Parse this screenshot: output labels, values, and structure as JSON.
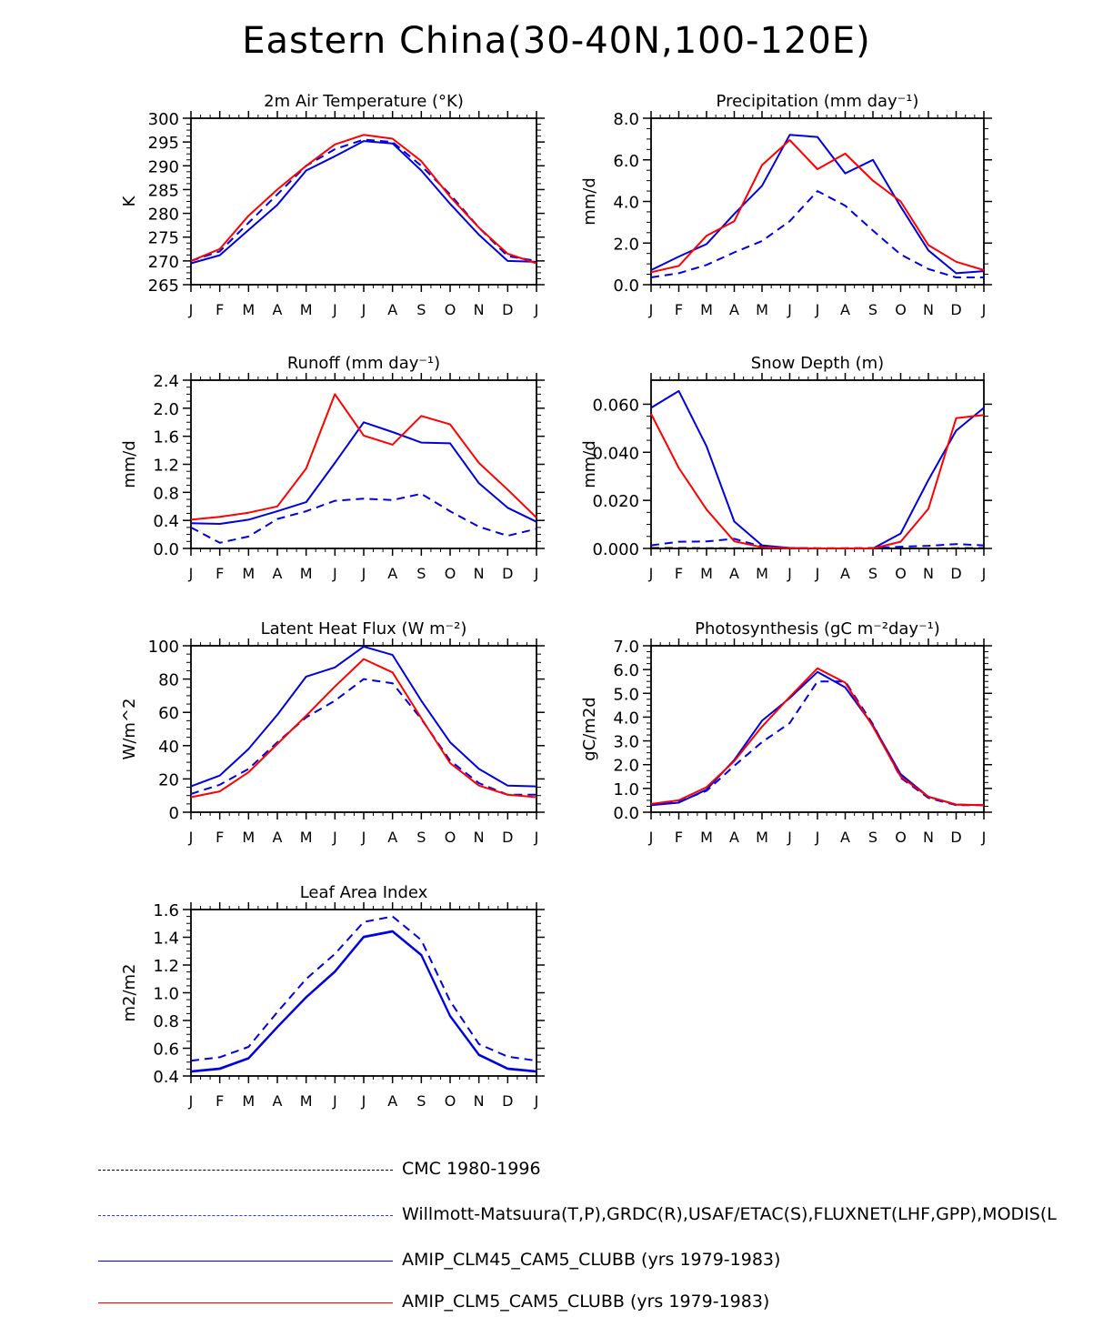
{
  "title": "Eastern China(30-40N,100-120E)",
  "colors": {
    "obs": "#000000",
    "obs2": "#1a1aff",
    "clm45": "#0000e0",
    "clm5": "#ff0000",
    "axis": "#000000"
  },
  "legend": [
    {
      "label": "CMC 1980-1996",
      "color": "#000000",
      "dash": true
    },
    {
      "label": "Willmott-Matsuura(T,P),GRDC(R),USAF/ETAC(S),FLUXNET(LHF,GPP),MODIS(L",
      "color": "#3333ff",
      "dash": true
    },
    {
      "label": "AMIP_CLM45_CAM5_CLUBB (yrs 1979-1983)",
      "color": "#0000e0",
      "dash": false
    },
    {
      "label": "AMIP_CLM5_CAM5_CLUBB (yrs 1979-1983)",
      "color": "#ff0000",
      "dash": false
    }
  ],
  "chart_data": [
    {
      "type": "line",
      "title": "2m Air Temperature (°K)",
      "ylabel": "K",
      "categories": [
        "J",
        "F",
        "M",
        "A",
        "M",
        "J",
        "J",
        "A",
        "S",
        "O",
        "N",
        "D",
        "J"
      ],
      "ylim": [
        265,
        300
      ],
      "yticks": [
        265,
        270,
        275,
        280,
        285,
        290,
        295,
        300
      ],
      "ytick_labels": [
        "265",
        "270",
        "275",
        "280",
        "285",
        "290",
        "295",
        "300"
      ],
      "series": [
        {
          "name": "Willmott-Matsuura",
          "style": "dash",
          "color": "#0000e0",
          "values": [
            270,
            272,
            278,
            284,
            290,
            293.5,
            295.5,
            295,
            290,
            284,
            277,
            271,
            270
          ]
        },
        {
          "name": "AMIP_CLM45_CAM5_CLUBB",
          "style": "solid",
          "color": "#0000e0",
          "values": [
            269.5,
            271.2,
            276.5,
            281.8,
            289,
            292,
            295.2,
            294.7,
            289,
            282,
            275.5,
            270,
            269.8
          ]
        },
        {
          "name": "AMIP_CLM5_CAM5_CLUBB",
          "style": "solid",
          "color": "#ff0000",
          "values": [
            270,
            272.5,
            279.5,
            285,
            290,
            294.5,
            296.5,
            295.7,
            291,
            283.5,
            277,
            271.5,
            269.5
          ]
        }
      ]
    },
    {
      "type": "line",
      "title": "Precipitation (mm day⁻¹)",
      "ylabel": "mm/d",
      "categories": [
        "J",
        "F",
        "M",
        "A",
        "M",
        "J",
        "J",
        "A",
        "S",
        "O",
        "N",
        "D",
        "J"
      ],
      "ylim": [
        0,
        8
      ],
      "yticks": [
        0,
        2,
        4,
        6,
        8
      ],
      "ytick_labels": [
        "0.0",
        "2.0",
        "4.0",
        "6.0",
        "8.0"
      ],
      "series": [
        {
          "name": "Willmott-Matsuura",
          "style": "dash",
          "color": "#0000e0",
          "values": [
            0.35,
            0.55,
            0.95,
            1.55,
            2.1,
            3.05,
            4.5,
            3.8,
            2.6,
            1.45,
            0.75,
            0.35,
            0.35
          ]
        },
        {
          "name": "AMIP_CLM45_CAM5_CLUBB",
          "style": "solid",
          "color": "#0000e0",
          "values": [
            0.7,
            1.35,
            1.95,
            3.4,
            4.75,
            7.2,
            7.1,
            5.35,
            6.0,
            3.75,
            1.65,
            0.55,
            0.65
          ]
        },
        {
          "name": "AMIP_CLM5_CAM5_CLUBB",
          "style": "solid",
          "color": "#ff0000",
          "values": [
            0.6,
            0.9,
            2.35,
            3.05,
            5.75,
            6.95,
            5.55,
            6.3,
            5.0,
            4.0,
            1.9,
            1.1,
            0.7
          ]
        }
      ]
    },
    {
      "type": "line",
      "title": "Runoff (mm day⁻¹)",
      "ylabel": "mm/d",
      "categories": [
        "J",
        "F",
        "M",
        "A",
        "M",
        "J",
        "J",
        "A",
        "S",
        "O",
        "N",
        "D",
        "J"
      ],
      "ylim": [
        0,
        2.4
      ],
      "yticks": [
        0,
        0.4,
        0.8,
        1.2,
        1.6,
        2.0,
        2.4
      ],
      "ytick_labels": [
        "0.0",
        "0.4",
        "0.8",
        "1.2",
        "1.6",
        "2.0",
        "2.4"
      ],
      "series": [
        {
          "name": "GRDC",
          "style": "dash",
          "color": "#0000e0",
          "values": [
            0.3,
            0.08,
            0.17,
            0.42,
            0.53,
            0.68,
            0.71,
            0.69,
            0.78,
            0.53,
            0.31,
            0.18,
            0.28
          ]
        },
        {
          "name": "AMIP_CLM45_CAM5_CLUBB",
          "style": "solid",
          "color": "#0000e0",
          "values": [
            0.36,
            0.35,
            0.41,
            0.53,
            0.66,
            1.22,
            1.8,
            1.66,
            1.51,
            1.5,
            0.93,
            0.58,
            0.38
          ]
        },
        {
          "name": "AMIP_CLM5_CAM5_CLUBB",
          "style": "solid",
          "color": "#ff0000",
          "values": [
            0.41,
            0.45,
            0.51,
            0.6,
            1.14,
            2.2,
            1.61,
            1.48,
            1.89,
            1.77,
            1.22,
            0.84,
            0.44
          ]
        }
      ]
    },
    {
      "type": "line",
      "title": "Snow Depth (m)",
      "ylabel": "mm/d",
      "categories": [
        "J",
        "F",
        "M",
        "A",
        "M",
        "J",
        "J",
        "A",
        "S",
        "O",
        "N",
        "D",
        "J"
      ],
      "ylim": [
        0,
        0.07
      ],
      "yticks": [
        0,
        0.02,
        0.04,
        0.06
      ],
      "ytick_labels": [
        "0.000",
        "0.020",
        "0.040",
        "0.060"
      ],
      "series": [
        {
          "name": "CMC",
          "style": "dash",
          "color": "#000000",
          "values": [
            0.0002,
            0.0002,
            0.0001,
            0.0001,
            0,
            0,
            0,
            0,
            0,
            0,
            0,
            0.0001,
            0.0002
          ]
        },
        {
          "name": "USAF/ETAC",
          "style": "dash",
          "color": "#0000e0",
          "values": [
            0.0013,
            0.0028,
            0.0029,
            0.004,
            0.0008,
            0.0002,
            0.0001,
            0.0001,
            0.0002,
            0.0007,
            0.0011,
            0.0018,
            0.0013
          ]
        },
        {
          "name": "AMIP_CLM45_CAM5_CLUBB",
          "style": "solid",
          "color": "#0000e0",
          "values": [
            0.0585,
            0.0655,
            0.0425,
            0.0112,
            0.0013,
            0.0002,
            0,
            0,
            0,
            0.0062,
            0.0285,
            0.049,
            0.0585
          ]
        },
        {
          "name": "AMIP_CLM5_CAM5_CLUBB",
          "style": "solid",
          "color": "#ff0000",
          "values": [
            0.056,
            0.0335,
            0.0162,
            0.003,
            0.0005,
            0.0001,
            0,
            0,
            0,
            0.0028,
            0.0165,
            0.0542,
            0.0555
          ]
        }
      ]
    },
    {
      "type": "line",
      "title": "Latent Heat Flux (W m⁻²)",
      "ylabel": "W/m^2",
      "categories": [
        "J",
        "F",
        "M",
        "A",
        "M",
        "J",
        "J",
        "A",
        "S",
        "O",
        "N",
        "D",
        "J"
      ],
      "ylim": [
        0,
        100
      ],
      "yticks": [
        0,
        20,
        40,
        60,
        80,
        100
      ],
      "ytick_labels": [
        "0",
        "20",
        "40",
        "60",
        "80",
        "100"
      ],
      "series": [
        {
          "name": "FLUXNET",
          "style": "dash",
          "color": "#0000e0",
          "values": [
            11,
            16.5,
            26,
            42,
            57,
            67,
            80,
            77.5,
            56,
            31,
            17.5,
            10.5,
            10.5
          ]
        },
        {
          "name": "AMIP_CLM45_CAM5_CLUBB",
          "style": "solid",
          "color": "#0000e0",
          "values": [
            15.5,
            22,
            38,
            58.5,
            81.5,
            87,
            99.5,
            94.5,
            67,
            42,
            26,
            16,
            15.5
          ]
        },
        {
          "name": "AMIP_CLM5_CAM5_CLUBB",
          "style": "solid",
          "color": "#ff0000",
          "values": [
            9,
            12.5,
            24,
            41,
            58,
            75.5,
            92,
            84,
            56.5,
            29.5,
            16,
            10.5,
            9
          ]
        }
      ]
    },
    {
      "type": "line",
      "title": "Photosynthesis (gC m⁻²day⁻¹)",
      "ylabel": "gC/m2d",
      "categories": [
        "J",
        "F",
        "M",
        "A",
        "M",
        "J",
        "J",
        "A",
        "S",
        "O",
        "N",
        "D",
        "J"
      ],
      "ylim": [
        0,
        7
      ],
      "yticks": [
        0,
        1,
        2,
        3,
        4,
        5,
        6,
        7
      ],
      "ytick_labels": [
        "0.0",
        "1.0",
        "2.0",
        "3.0",
        "4.0",
        "5.0",
        "6.0",
        "7.0"
      ],
      "series": [
        {
          "name": "FLUXNET",
          "style": "dash",
          "color": "#0000e0",
          "values": [
            0.3,
            0.45,
            0.9,
            1.95,
            2.95,
            3.75,
            5.5,
            5.5,
            3.7,
            1.45,
            0.6,
            0.3,
            0.3
          ]
        },
        {
          "name": "AMIP_CLM45_CAM5_CLUBB",
          "style": "solid",
          "color": "#0000e0",
          "values": [
            0.3,
            0.4,
            0.95,
            2.2,
            3.85,
            4.8,
            5.9,
            5.25,
            3.65,
            1.6,
            0.65,
            0.32,
            0.3
          ]
        },
        {
          "name": "AMIP_CLM5_CAM5_CLUBB",
          "style": "solid",
          "color": "#ff0000",
          "values": [
            0.35,
            0.5,
            1.05,
            2.15,
            3.6,
            4.85,
            6.05,
            5.45,
            3.6,
            1.5,
            0.65,
            0.32,
            0.3
          ]
        }
      ]
    },
    {
      "type": "line",
      "title": "Leaf Area Index",
      "ylabel": "m2/m2",
      "categories": [
        "J",
        "F",
        "M",
        "A",
        "M",
        "J",
        "J",
        "A",
        "S",
        "O",
        "N",
        "D",
        "J"
      ],
      "ylim": [
        0.4,
        1.6
      ],
      "yticks": [
        0.4,
        0.6,
        0.8,
        1.0,
        1.2,
        1.4,
        1.6
      ],
      "ytick_labels": [
        "0.4",
        "0.6",
        "0.8",
        "1.0",
        "1.2",
        "1.4",
        "1.6"
      ],
      "series": [
        {
          "name": "MODIS",
          "style": "dash",
          "color": "#0000e0",
          "values": [
            0.51,
            0.535,
            0.61,
            0.86,
            1.1,
            1.28,
            1.51,
            1.55,
            1.38,
            0.94,
            0.63,
            0.54,
            0.51
          ]
        },
        {
          "name": "AMIP_CLM45_CAM5_CLUBB",
          "style": "solid",
          "color": "#0000e0",
          "values": [
            0.43,
            0.45,
            0.525,
            0.75,
            0.965,
            1.15,
            1.4,
            1.44,
            1.27,
            0.83,
            0.55,
            0.45,
            0.43
          ]
        },
        {
          "name": "AMIP_CLM5_CAM5_CLUBB",
          "style": "solid",
          "color": "#0000e0",
          "values": [
            0.435,
            0.455,
            0.53,
            0.755,
            0.97,
            1.155,
            1.405,
            1.445,
            1.275,
            0.835,
            0.555,
            0.455,
            0.435
          ]
        }
      ]
    }
  ]
}
